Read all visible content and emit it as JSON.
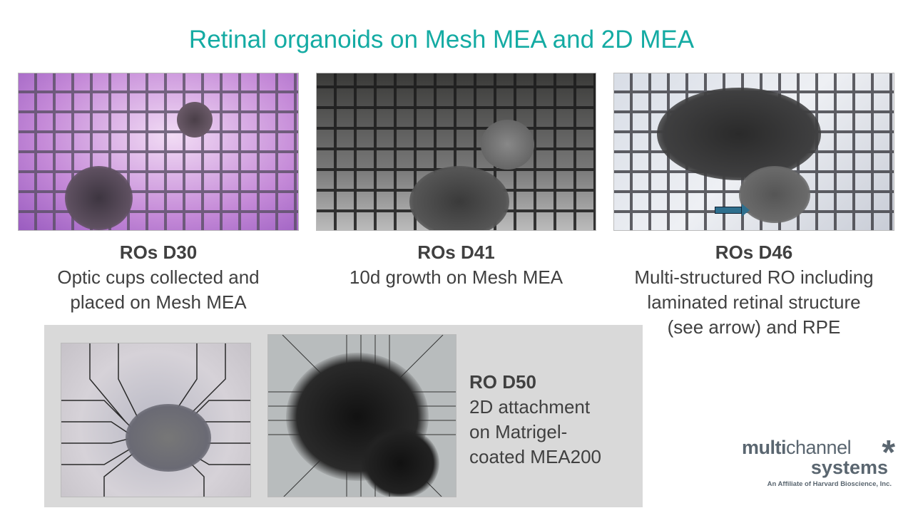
{
  "title": "Retinal organoids on Mesh MEA and 2D MEA",
  "panels": [
    {
      "heading": "ROs D30",
      "lines": [
        "Optic cups collected and",
        "placed on Mesh MEA"
      ]
    },
    {
      "heading": "ROs D41",
      "lines": [
        "10d growth on Mesh MEA"
      ]
    },
    {
      "heading": "ROs D46",
      "lines": [
        "Multi-structured RO including",
        "laminated retinal structure",
        "(see arrow) and RPE"
      ]
    }
  ],
  "bottom_panel": {
    "heading": "RO D50",
    "lines": [
      "2D attachment",
      "on Matrigel-",
      "coated MEA200"
    ]
  },
  "logo": {
    "line1_bold": "multi",
    "line1_light": "channel",
    "line2": "systems",
    "tagline": "An Affiliate of Harvard Bioscience, Inc."
  },
  "colors": {
    "title": "#14aba3",
    "text": "#404040",
    "box": "#d9d9d9",
    "logo": "#5a6670"
  }
}
